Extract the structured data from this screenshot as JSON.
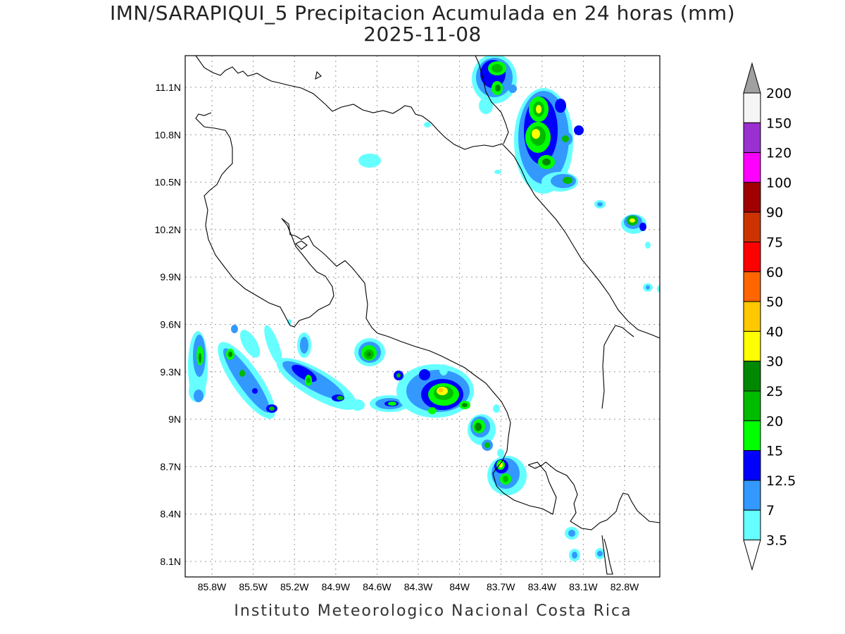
{
  "title_line1": "IMN/SARAPIQUI_5 Precipitacion Acumulada en 24 horas (mm)",
  "title_line2": "2025-11-08",
  "footer": "Instituto Meteorologico Nacional Costa Rica",
  "map": {
    "lon_ticks": [
      "85.8W",
      "85.5W",
      "85.2W",
      "84.9W",
      "84.6W",
      "84.3W",
      "84W",
      "83.7W",
      "83.4W",
      "83.1W",
      "82.8W"
    ],
    "lat_ticks": [
      "11.1N",
      "10.8N",
      "10.5N",
      "10.2N",
      "9.9N",
      "9.6N",
      "9.3N",
      "9N",
      "8.7N",
      "8.4N",
      "8.1N"
    ]
  },
  "colorbar": {
    "labels": [
      "200",
      "150",
      "120",
      "100",
      "90",
      "75",
      "60",
      "50",
      "40",
      "30",
      "25",
      "20",
      "15",
      "12.5",
      "7",
      "3.5"
    ],
    "colors": [
      "#a0a0a0",
      "#f5f5f5",
      "#9b30d0",
      "#ff00ff",
      "#a00000",
      "#cc3300",
      "#ff0000",
      "#ff6600",
      "#ffc800",
      "#ffff00",
      "#008800",
      "#00bb00",
      "#00ff00",
      "#0000ff",
      "#3399ff",
      "#66ffff"
    ]
  },
  "precip_colors": {
    "c3": "#66ffff",
    "c7": "#3399ff",
    "c12": "#0000ff",
    "c15": "#00ff00",
    "c20": "#00bb00",
    "c25": "#008800",
    "c30": "#ffff00",
    "c40": "#ffc800"
  }
}
